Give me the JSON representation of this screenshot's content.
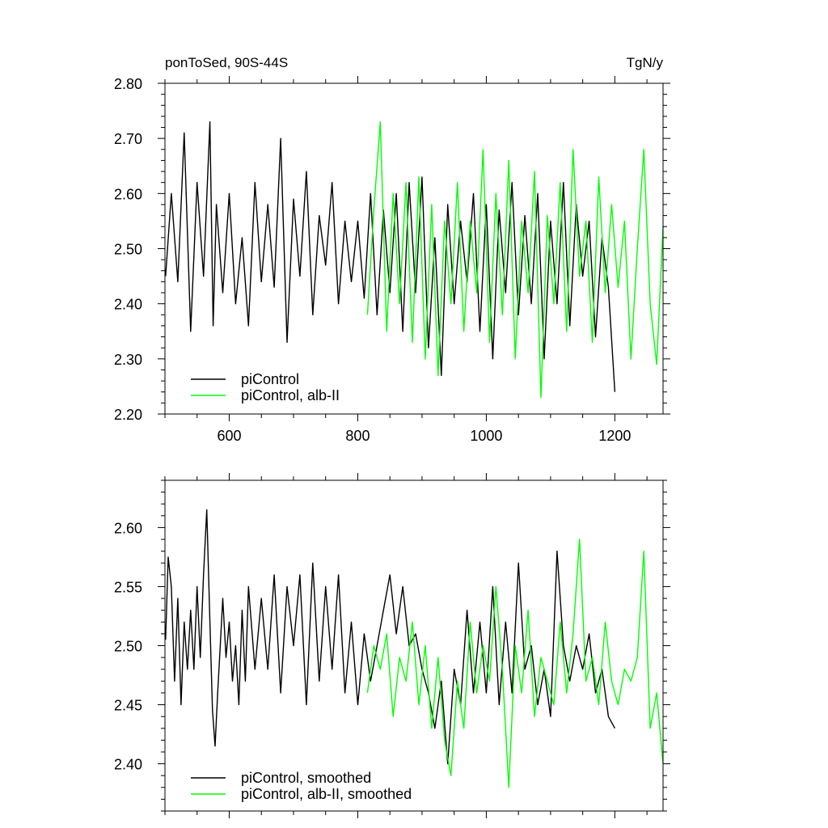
{
  "chart_data": [
    {
      "type": "line",
      "title_left": "ponToSed, 90S-44S",
      "title_right": "TgN/y",
      "xlim": [
        500,
        1275
      ],
      "ylim": [
        2.2,
        2.8
      ],
      "x_ticks": [
        600,
        800,
        1000,
        1200
      ],
      "x_tick_labels": [
        "600",
        "800",
        "1000",
        "1200"
      ],
      "y_ticks": [
        2.2,
        2.3,
        2.4,
        2.5,
        2.6,
        2.7,
        2.8
      ],
      "y_tick_labels": [
        "2.20",
        "2.30",
        "2.40",
        "2.50",
        "2.60",
        "2.70",
        "2.80"
      ],
      "grid": false,
      "legend_position": "bottom-left",
      "series": [
        {
          "name": "piControl",
          "color": "#000000",
          "x": [
            501,
            510,
            520,
            530,
            540,
            550,
            560,
            570,
            575,
            580,
            590,
            600,
            610,
            620,
            630,
            640,
            650,
            660,
            670,
            680,
            690,
            700,
            710,
            720,
            730,
            740,
            750,
            760,
            770,
            780,
            790,
            800,
            810,
            820,
            830,
            840,
            850,
            860,
            870,
            880,
            890,
            900,
            910,
            920,
            930,
            940,
            950,
            960,
            970,
            980,
            990,
            1000,
            1010,
            1020,
            1030,
            1040,
            1050,
            1060,
            1070,
            1080,
            1090,
            1100,
            1110,
            1120,
            1130,
            1140,
            1150,
            1160,
            1170,
            1180,
            1190,
            1200
          ],
          "values": [
            2.45,
            2.6,
            2.44,
            2.71,
            2.35,
            2.62,
            2.45,
            2.73,
            2.36,
            2.58,
            2.42,
            2.6,
            2.4,
            2.52,
            2.36,
            2.62,
            2.44,
            2.58,
            2.43,
            2.7,
            2.33,
            2.59,
            2.45,
            2.64,
            2.38,
            2.56,
            2.47,
            2.62,
            2.4,
            2.55,
            2.44,
            2.55,
            2.41,
            2.6,
            2.38,
            2.57,
            2.42,
            2.6,
            2.35,
            2.62,
            2.42,
            2.63,
            2.32,
            2.52,
            2.27,
            2.58,
            2.4,
            2.55,
            2.44,
            2.6,
            2.35,
            2.58,
            2.3,
            2.57,
            2.42,
            2.62,
            2.38,
            2.56,
            2.4,
            2.6,
            2.3,
            2.55,
            2.4,
            2.62,
            2.36,
            2.58,
            2.45,
            2.55,
            2.34,
            2.52,
            2.43,
            2.24
          ]
        },
        {
          "name": "piControl, alb-II",
          "color": "#00ff00",
          "x": [
            815,
            825,
            835,
            845,
            855,
            865,
            875,
            885,
            895,
            905,
            915,
            925,
            935,
            945,
            955,
            965,
            975,
            985,
            995,
            1005,
            1015,
            1025,
            1035,
            1045,
            1055,
            1065,
            1075,
            1085,
            1095,
            1105,
            1115,
            1125,
            1135,
            1145,
            1155,
            1165,
            1175,
            1185,
            1195,
            1205,
            1215,
            1225,
            1235,
            1245,
            1255,
            1265,
            1275
          ],
          "values": [
            2.38,
            2.57,
            2.73,
            2.35,
            2.6,
            2.4,
            2.62,
            2.33,
            2.63,
            2.3,
            2.58,
            2.27,
            2.55,
            2.4,
            2.62,
            2.35,
            2.55,
            2.42,
            2.68,
            2.33,
            2.6,
            2.38,
            2.66,
            2.3,
            2.55,
            2.42,
            2.64,
            2.23,
            2.56,
            2.4,
            2.62,
            2.35,
            2.68,
            2.45,
            2.55,
            2.33,
            2.63,
            2.42,
            2.58,
            2.43,
            2.55,
            2.3,
            2.5,
            2.68,
            2.4,
            2.29,
            2.54
          ]
        }
      ]
    },
    {
      "type": "line",
      "xlim": [
        500,
        1275
      ],
      "ylim": [
        2.36,
        2.64
      ],
      "x_ticks": [
        600,
        800,
        1000,
        1200
      ],
      "y_ticks": [
        2.4,
        2.45,
        2.5,
        2.55,
        2.6
      ],
      "y_tick_labels": [
        "2.40",
        "2.45",
        "2.50",
        "2.55",
        "2.60"
      ],
      "grid": false,
      "legend_position": "bottom-left",
      "series": [
        {
          "name": "piControl, smoothed",
          "color": "#000000",
          "x": [
            501,
            505,
            510,
            515,
            520,
            525,
            530,
            535,
            540,
            545,
            550,
            555,
            560,
            565,
            570,
            574,
            578,
            582,
            586,
            590,
            595,
            600,
            605,
            610,
            615,
            620,
            625,
            630,
            640,
            650,
            660,
            670,
            680,
            690,
            700,
            710,
            720,
            730,
            740,
            750,
            760,
            770,
            780,
            790,
            800,
            810,
            820,
            830,
            840,
            850,
            860,
            870,
            880,
            890,
            900,
            910,
            920,
            930,
            940,
            950,
            960,
            970,
            980,
            990,
            1000,
            1010,
            1020,
            1030,
            1040,
            1050,
            1060,
            1070,
            1080,
            1090,
            1100,
            1110,
            1120,
            1130,
            1140,
            1150,
            1160,
            1170,
            1180,
            1190,
            1200
          ],
          "values": [
            2.505,
            2.575,
            2.55,
            2.47,
            2.54,
            2.45,
            2.52,
            2.48,
            2.53,
            2.48,
            2.55,
            2.49,
            2.56,
            2.615,
            2.52,
            2.445,
            2.415,
            2.46,
            2.5,
            2.54,
            2.49,
            2.52,
            2.47,
            2.5,
            2.45,
            2.53,
            2.47,
            2.55,
            2.48,
            2.54,
            2.48,
            2.56,
            2.46,
            2.55,
            2.5,
            2.56,
            2.45,
            2.57,
            2.47,
            2.55,
            2.48,
            2.56,
            2.46,
            2.52,
            2.45,
            2.51,
            2.47,
            2.5,
            2.53,
            2.56,
            2.51,
            2.55,
            2.5,
            2.51,
            2.48,
            2.46,
            2.43,
            2.47,
            2.4,
            2.48,
            2.45,
            2.53,
            2.46,
            2.52,
            2.46,
            2.55,
            2.45,
            2.52,
            2.46,
            2.57,
            2.48,
            2.5,
            2.45,
            2.48,
            2.44,
            2.58,
            2.5,
            2.47,
            2.5,
            2.48,
            2.51,
            2.46,
            2.48,
            2.44,
            2.43
          ]
        },
        {
          "name": "piControl, alb-II, smoothed",
          "color": "#00ff00",
          "x": [
            815,
            825,
            835,
            845,
            855,
            865,
            875,
            885,
            895,
            905,
            915,
            925,
            935,
            945,
            955,
            965,
            975,
            985,
            995,
            1005,
            1015,
            1025,
            1035,
            1045,
            1055,
            1065,
            1075,
            1085,
            1095,
            1105,
            1115,
            1125,
            1135,
            1145,
            1155,
            1165,
            1175,
            1185,
            1195,
            1205,
            1215,
            1225,
            1235,
            1245,
            1255,
            1265,
            1275
          ],
          "values": [
            2.46,
            2.5,
            2.48,
            2.51,
            2.44,
            2.49,
            2.47,
            2.52,
            2.45,
            2.5,
            2.43,
            2.49,
            2.42,
            2.39,
            2.47,
            2.43,
            2.52,
            2.46,
            2.5,
            2.47,
            2.55,
            2.48,
            2.38,
            2.5,
            2.46,
            2.53,
            2.44,
            2.49,
            2.47,
            2.45,
            2.52,
            2.46,
            2.51,
            2.59,
            2.47,
            2.49,
            2.45,
            2.52,
            2.47,
            2.45,
            2.48,
            2.47,
            2.49,
            2.58,
            2.43,
            2.46,
            2.4
          ]
        }
      ]
    }
  ]
}
